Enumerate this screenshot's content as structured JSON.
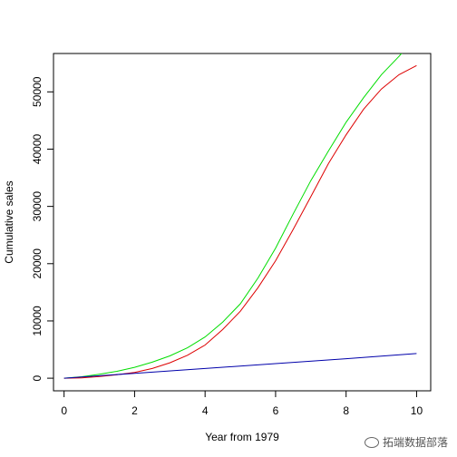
{
  "chart_data": {
    "type": "line",
    "title": "",
    "xlabel": "Year from 1979",
    "ylabel": "Cumulative sales",
    "xlim": [
      -0.3,
      10.4
    ],
    "ylim": [
      -2200,
      56700
    ],
    "xticks": [
      0,
      2,
      4,
      6,
      8,
      10
    ],
    "yticks": [
      0,
      10000,
      20000,
      30000,
      40000,
      50000
    ],
    "grid": false,
    "legend": "none",
    "series": [
      {
        "color": "#00dd00",
        "x": [
          0,
          0.5,
          1,
          1.5,
          2,
          2.5,
          3,
          3.5,
          4,
          4.5,
          5,
          5.5,
          6,
          6.5,
          7,
          7.5,
          8,
          8.5,
          9,
          9.5,
          9.8
        ],
        "y": [
          0,
          250,
          700,
          1200,
          1900,
          2800,
          3900,
          5300,
          7200,
          9800,
          13000,
          17500,
          22700,
          28700,
          34500,
          39700,
          44700,
          49000,
          53000,
          56200,
          58300
        ]
      },
      {
        "color": "#dd0000",
        "x": [
          0,
          0.5,
          1,
          1.5,
          2,
          2.5,
          3,
          3.5,
          4,
          4.5,
          5,
          5.5,
          6,
          6.5,
          7,
          7.5,
          8,
          8.5,
          9,
          9.5,
          10
        ],
        "y": [
          0,
          50,
          300,
          600,
          1000,
          1700,
          2700,
          4000,
          5800,
          8500,
          11700,
          15800,
          20500,
          26000,
          31700,
          37500,
          42500,
          47000,
          50500,
          53000,
          54600
        ]
      },
      {
        "color": "#0000aa",
        "x": [
          0,
          2,
          4,
          6,
          8,
          10
        ],
        "y": [
          0,
          850,
          1700,
          2550,
          3400,
          4300
        ]
      }
    ]
  },
  "watermark": "拓端数据部落"
}
